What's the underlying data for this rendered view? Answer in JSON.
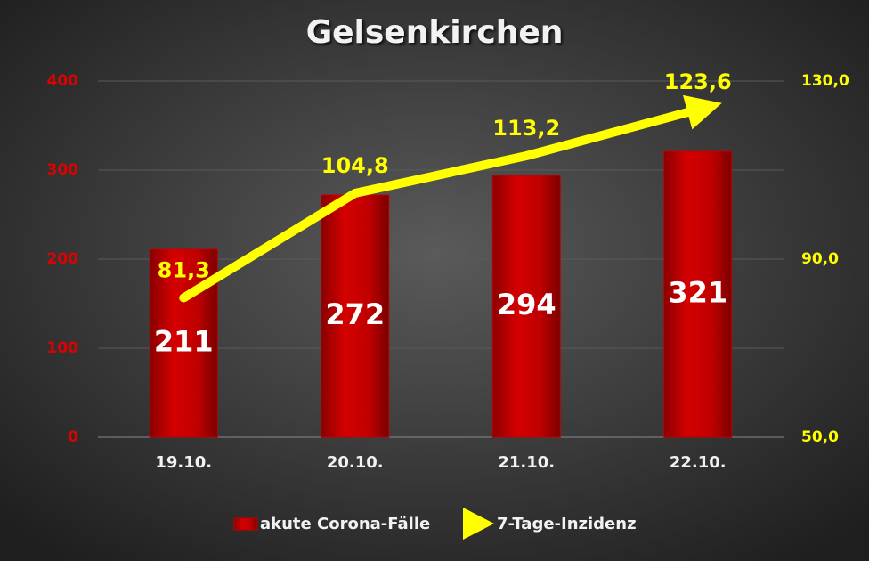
{
  "chart_data": {
    "type": "bar",
    "title": "Gelsenkirchen",
    "categories": [
      "19.10.",
      "20.10.",
      "21.10.",
      "22.10."
    ],
    "series": [
      {
        "name": "akute Corona-Fälle",
        "type": "bar",
        "color": "#c00000",
        "values": [
          211,
          272,
          294,
          321
        ]
      },
      {
        "name": "7-Tage-Inzidenz",
        "type": "line",
        "axis": "y2",
        "color": "#ffff00",
        "values": [
          81.3,
          104.8,
          113.2,
          123.6
        ],
        "value_labels": [
          "81,3",
          "104,8",
          "113,2",
          "123,6"
        ]
      }
    ],
    "ylim": [
      0,
      400
    ],
    "yticks": [
      0,
      100,
      200,
      300,
      400
    ],
    "y2lim": [
      50,
      130
    ],
    "y2ticks": [
      {
        "value": 50,
        "label": "50,0"
      },
      {
        "value": 90,
        "label": "90,0"
      },
      {
        "value": 130,
        "label": "130,0"
      }
    ],
    "grid": true
  }
}
